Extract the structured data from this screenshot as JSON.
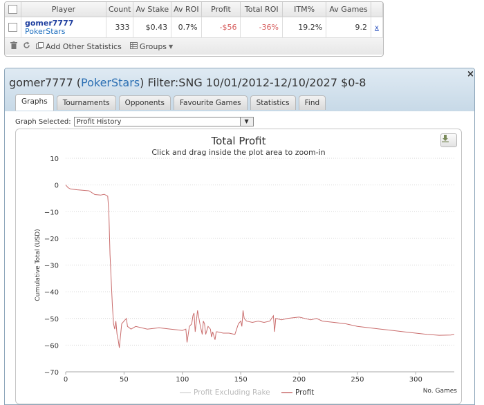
{
  "stats_table": {
    "headers": [
      "Player",
      "Count",
      "Av Stake",
      "Av ROI",
      "Profit",
      "Total ROI",
      "ITM%",
      "Av Games"
    ],
    "row": {
      "player_name": "gomer7777",
      "player_site": "PokerStars",
      "count": "333",
      "av_stake": "$0.43",
      "av_roi": "0.7%",
      "profit": "-$56",
      "total_roi": "-36%",
      "itm": "19.2%",
      "av_games": "9.2",
      "delete": "x"
    },
    "footer": {
      "add_stats_label": "Add Other Statistics",
      "groups_label": "Groups"
    }
  },
  "dialog": {
    "title_prefix": "gomer7777 (",
    "title_site": "PokerStars",
    "title_suffix": ") Filter:SNG 10/01/2012-12/10/2027 $0-8",
    "close": "×",
    "tabs": [
      {
        "label": "Graphs",
        "active": true
      },
      {
        "label": "Tournaments"
      },
      {
        "label": "Opponents"
      },
      {
        "label": "Favourite Games"
      },
      {
        "label": "Statistics"
      },
      {
        "label": "Find"
      }
    ],
    "graph_selected_label": "Graph Selected:",
    "graph_selected_value": "Profit History"
  },
  "icons": {
    "trash": "trash-icon",
    "refresh": "refresh-icon",
    "add_stats": "add-stats-icon",
    "groups": "groups-icon",
    "export": "download-icon"
  },
  "colors": {
    "profit_line": "#c96b6b",
    "profit_excl_rake_line": "#d9d9d9",
    "accent": "#2b6fb3"
  },
  "chart_data": {
    "type": "line",
    "title": "Total Profit",
    "subtitle": "Click and drag inside the plot area to zoom-in",
    "xlabel": "No. Games",
    "ylabel": "Cumulative Total (USD)",
    "ylim": [
      -70,
      10
    ],
    "xlim": [
      0,
      333
    ],
    "yticks": [
      10,
      0,
      -10,
      -20,
      -30,
      -40,
      -50,
      -60,
      -70
    ],
    "xticks": [
      0,
      50,
      100,
      150,
      200,
      250,
      300
    ],
    "grid": true,
    "legend_position": "bottom-center",
    "series": [
      {
        "name": "Profit Excluding Rake",
        "values": []
      },
      {
        "name": "Profit",
        "points": [
          [
            0,
            0
          ],
          [
            2,
            -1
          ],
          [
            4,
            -1.5
          ],
          [
            10,
            -1.8
          ],
          [
            20,
            -2.2
          ],
          [
            25,
            -3.6
          ],
          [
            30,
            -3.8
          ],
          [
            33,
            -3.5
          ],
          [
            36,
            -4.2
          ],
          [
            37,
            -10
          ],
          [
            38,
            -26
          ],
          [
            40,
            -45
          ],
          [
            41,
            -52
          ],
          [
            42,
            -54
          ],
          [
            43,
            -51
          ],
          [
            44,
            -56
          ],
          [
            45,
            -58
          ],
          [
            46,
            -61
          ],
          [
            48,
            -52
          ],
          [
            50,
            -51
          ],
          [
            52,
            -50
          ],
          [
            53,
            -53
          ],
          [
            56,
            -54
          ],
          [
            60,
            -53
          ],
          [
            70,
            -54
          ],
          [
            80,
            -53.5
          ],
          [
            90,
            -54
          ],
          [
            100,
            -54.5
          ],
          [
            103,
            -54
          ],
          [
            104,
            -59
          ],
          [
            106,
            -53
          ],
          [
            108,
            -52
          ],
          [
            109,
            -49
          ],
          [
            110,
            -48
          ],
          [
            111,
            -55
          ],
          [
            112,
            -51
          ],
          [
            113,
            -47
          ],
          [
            115,
            -52
          ],
          [
            117,
            -56
          ],
          [
            118,
            -51
          ],
          [
            119,
            -52
          ],
          [
            120,
            -56
          ],
          [
            122,
            -53
          ],
          [
            124,
            -54
          ],
          [
            125,
            -57
          ],
          [
            126,
            -55
          ],
          [
            128,
            -58
          ],
          [
            129,
            -55
          ],
          [
            130,
            -55
          ],
          [
            135,
            -55.5
          ],
          [
            140,
            -55.5
          ],
          [
            145,
            -56
          ],
          [
            148,
            -52
          ],
          [
            150,
            -51
          ],
          [
            151,
            -53
          ],
          [
            152,
            -47
          ],
          [
            153,
            -50
          ],
          [
            155,
            -51
          ],
          [
            160,
            -51.5
          ],
          [
            165,
            -51
          ],
          [
            170,
            -51.5
          ],
          [
            175,
            -51
          ],
          [
            178,
            -49
          ],
          [
            179,
            -55
          ],
          [
            180,
            -50
          ],
          [
            185,
            -50.5
          ],
          [
            190,
            -50
          ],
          [
            200,
            -49.5
          ],
          [
            205,
            -50
          ],
          [
            210,
            -50.5
          ],
          [
            215,
            -50
          ],
          [
            220,
            -51
          ],
          [
            230,
            -51.5
          ],
          [
            240,
            -52
          ],
          [
            250,
            -53
          ],
          [
            260,
            -53.5
          ],
          [
            270,
            -54
          ],
          [
            280,
            -54.5
          ],
          [
            290,
            -55
          ],
          [
            300,
            -55.5
          ],
          [
            310,
            -56
          ],
          [
            320,
            -56.3
          ],
          [
            330,
            -56.2
          ],
          [
            333,
            -56
          ]
        ]
      }
    ]
  }
}
